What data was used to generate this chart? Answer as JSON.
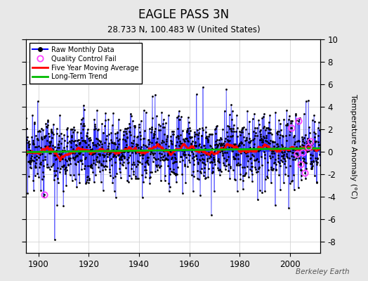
{
  "title": "EAGLE PASS 3N",
  "subtitle": "28.733 N, 100.483 W (United States)",
  "ylabel": "Temperature Anomaly (°C)",
  "watermark": "Berkeley Earth",
  "ylim": [
    -9,
    10
  ],
  "yticks": [
    -8,
    -6,
    -4,
    -2,
    0,
    2,
    4,
    6,
    8,
    10
  ],
  "xlim": [
    1895,
    2012
  ],
  "xticks": [
    1900,
    1920,
    1940,
    1960,
    1980,
    2000
  ],
  "raw_color": "#0000ff",
  "ma_color": "#ff0000",
  "trend_color": "#00bb00",
  "qc_color": "#ff44ff",
  "dot_color": "#000000",
  "plot_bg": "#ffffff",
  "fig_bg": "#e8e8e8",
  "seed": 99,
  "start_year": 1895,
  "end_year": 2012
}
